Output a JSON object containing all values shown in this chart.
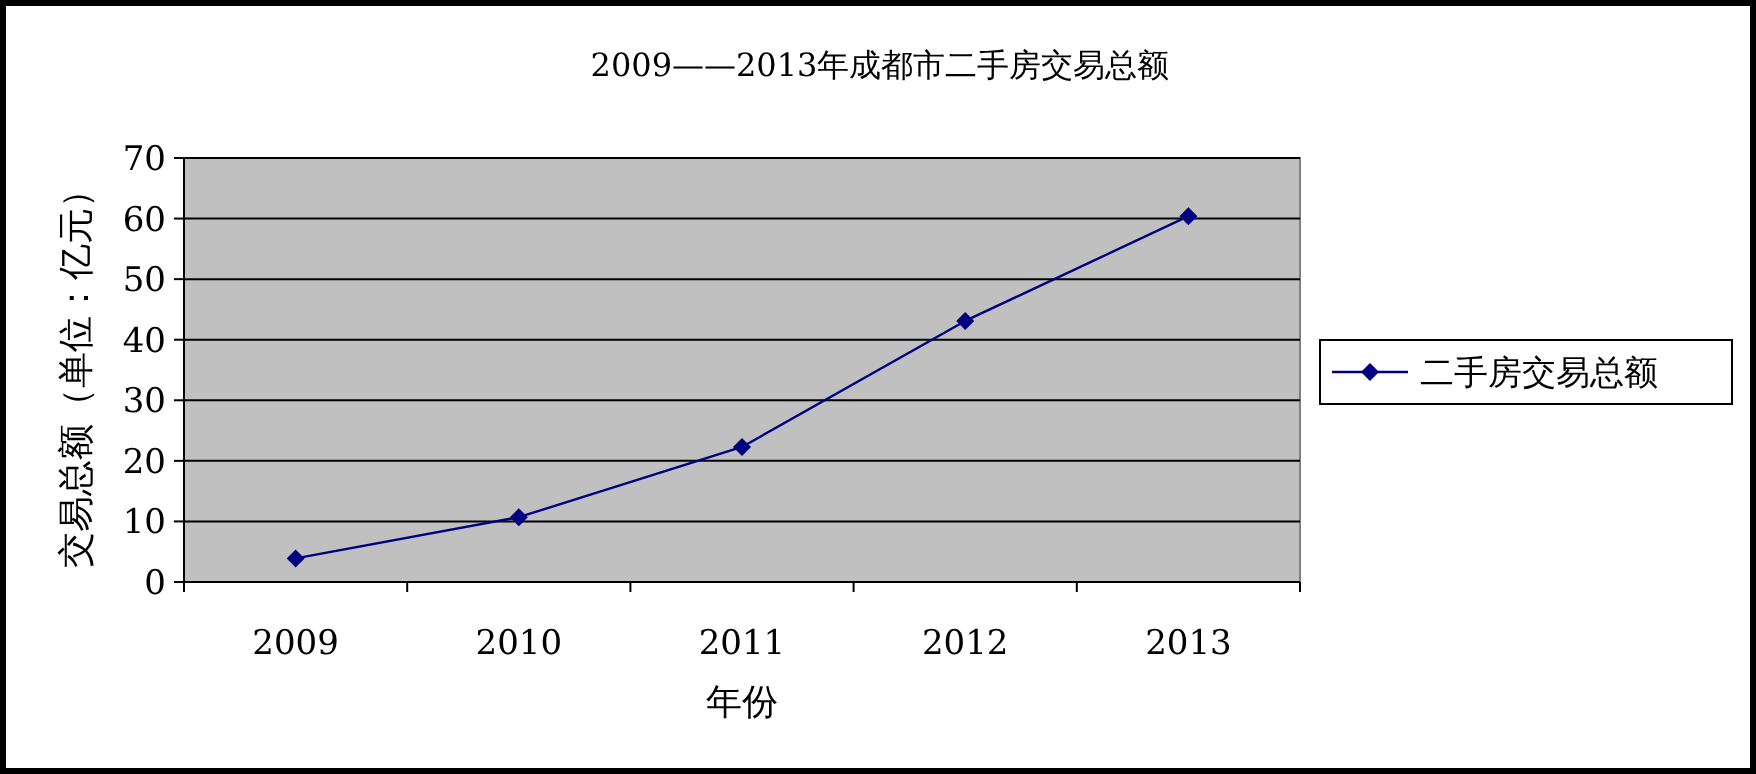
{
  "chart_data": {
    "type": "line",
    "title": "2009——2013年成都市二手房交易总额",
    "xlabel": "年份",
    "ylabel": "交易总额（单位：亿元）",
    "categories": [
      "2009",
      "2010",
      "2011",
      "2012",
      "2013"
    ],
    "series": [
      {
        "name": "二手房交易总额",
        "color": "#000080",
        "values": [
          3.9,
          10.7,
          22.3,
          43.1,
          60.4
        ]
      }
    ],
    "ylim": [
      0,
      70
    ],
    "yticks": [
      0,
      10,
      20,
      30,
      40,
      50,
      60,
      70
    ],
    "grid": "y",
    "legend": "right",
    "marker": "diamond"
  }
}
